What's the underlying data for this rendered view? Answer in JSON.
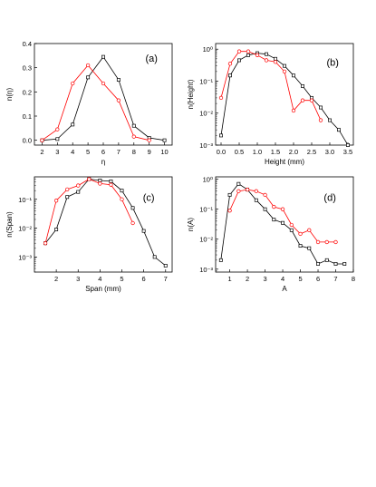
{
  "colors": {
    "black_series": "#000000",
    "red_series": "#ff0000",
    "axis": "#000000"
  },
  "chart_data": [
    {
      "panel": "(a)",
      "type": "line",
      "xscale": "linear",
      "yscale": "linear",
      "xlabel": "η",
      "ylabel": "n(η)",
      "xlim": [
        1.5,
        10.5
      ],
      "ylim": [
        -0.02,
        0.4
      ],
      "xticks": [
        "2",
        "3",
        "4",
        "5",
        "6",
        "7",
        "8",
        "9",
        "10"
      ],
      "yticks": [
        "0.0",
        "0.1",
        "0.2",
        "0.3",
        "0.4"
      ],
      "series": [
        {
          "color": "black",
          "marker": "square",
          "x": [
            2,
            3,
            4,
            5,
            6,
            7,
            8,
            9,
            10
          ],
          "y": [
            0.0,
            0.005,
            0.065,
            0.26,
            0.345,
            0.25,
            0.06,
            0.01,
            0.0
          ]
        },
        {
          "color": "red",
          "marker": "circle",
          "x": [
            2,
            3,
            4,
            5,
            6,
            7,
            8,
            9
          ],
          "y": [
            0.0,
            0.045,
            0.235,
            0.31,
            0.235,
            0.165,
            0.015,
            0.0
          ]
        }
      ]
    },
    {
      "panel": "(b)",
      "type": "line",
      "xscale": "linear",
      "yscale": "log",
      "xlabel": "Height (mm)",
      "ylabel": "n(Height)",
      "xlim": [
        -0.15,
        3.65
      ],
      "ylim": [
        0.001,
        1.5
      ],
      "xticks": [
        "0.0",
        "0.5",
        "1.0",
        "1.5",
        "2.0",
        "2.5",
        "3.0",
        "3.5"
      ],
      "yticks": [
        "10⁰",
        "10⁻¹",
        "10⁻²",
        "10⁻³"
      ],
      "series": [
        {
          "color": "black",
          "marker": "square",
          "x": [
            0.0,
            0.25,
            0.5,
            0.75,
            1.0,
            1.25,
            1.5,
            1.75,
            2.0,
            2.25,
            2.5,
            2.75,
            3.0,
            3.25,
            3.5
          ],
          "y": [
            0.002,
            0.15,
            0.45,
            0.65,
            0.75,
            0.7,
            0.5,
            0.3,
            0.15,
            0.07,
            0.03,
            0.015,
            0.006,
            0.003,
            0.001
          ]
        },
        {
          "color": "red",
          "marker": "circle",
          "x": [
            0.0,
            0.25,
            0.5,
            0.75,
            1.0,
            1.25,
            1.5,
            1.75,
            2.0,
            2.25,
            2.5,
            2.75
          ],
          "y": [
            0.03,
            0.35,
            0.85,
            0.85,
            0.65,
            0.45,
            0.4,
            0.2,
            0.012,
            0.025,
            0.025,
            0.006
          ]
        }
      ]
    },
    {
      "panel": "(c)",
      "type": "line",
      "xscale": "linear",
      "yscale": "log",
      "xlabel": "Span (mm)",
      "ylabel": "n(Span)",
      "xlim": [
        1,
        7.3
      ],
      "ylim": [
        0.0003,
        0.6
      ],
      "xticks": [
        "2",
        "3",
        "4",
        "5",
        "6",
        "7"
      ],
      "yticks": [
        "10⁻¹",
        "10⁻²",
        "10⁻³"
      ],
      "series": [
        {
          "color": "black",
          "marker": "square",
          "x": [
            1.5,
            2.0,
            2.5,
            3.0,
            3.5,
            4.0,
            4.5,
            5.0,
            5.5,
            6.0,
            6.5,
            7.0
          ],
          "y": [
            0.003,
            0.009,
            0.12,
            0.18,
            0.5,
            0.45,
            0.42,
            0.2,
            0.05,
            0.008,
            0.001,
            0.0005
          ]
        },
        {
          "color": "red",
          "marker": "circle",
          "x": [
            1.5,
            2.0,
            2.5,
            3.0,
            3.5,
            4.0,
            4.5,
            5.0,
            5.5
          ],
          "y": [
            0.003,
            0.09,
            0.22,
            0.3,
            0.5,
            0.35,
            0.32,
            0.1,
            0.015
          ]
        }
      ]
    },
    {
      "panel": "(d)",
      "type": "line",
      "xscale": "linear",
      "yscale": "log",
      "xlabel": "A",
      "ylabel": "n(A)",
      "xlim": [
        0.2,
        8
      ],
      "ylim": [
        0.0008,
        1.2
      ],
      "xticks": [
        "1",
        "2",
        "3",
        "4",
        "5",
        "6",
        "7",
        "8"
      ],
      "yticks": [
        "10⁰",
        "10⁻¹",
        "10⁻²",
        "10⁻³"
      ],
      "series": [
        {
          "color": "black",
          "marker": "square",
          "x": [
            0.5,
            1.0,
            1.5,
            2.0,
            2.5,
            3.0,
            3.5,
            4.0,
            4.5,
            5.0,
            5.5,
            6.0,
            6.5,
            7.0,
            7.5
          ],
          "y": [
            0.002,
            0.3,
            0.7,
            0.45,
            0.2,
            0.1,
            0.045,
            0.035,
            0.02,
            0.006,
            0.005,
            0.0015,
            0.002,
            0.0015,
            0.0015
          ]
        },
        {
          "color": "red",
          "marker": "circle",
          "x": [
            1.0,
            1.5,
            2.0,
            2.5,
            3.0,
            3.5,
            4.0,
            4.5,
            5.0,
            5.5,
            6.0,
            6.5,
            7.0
          ],
          "y": [
            0.09,
            0.4,
            0.45,
            0.4,
            0.3,
            0.12,
            0.1,
            0.03,
            0.015,
            0.02,
            0.008,
            0.008,
            0.008
          ]
        }
      ]
    }
  ]
}
